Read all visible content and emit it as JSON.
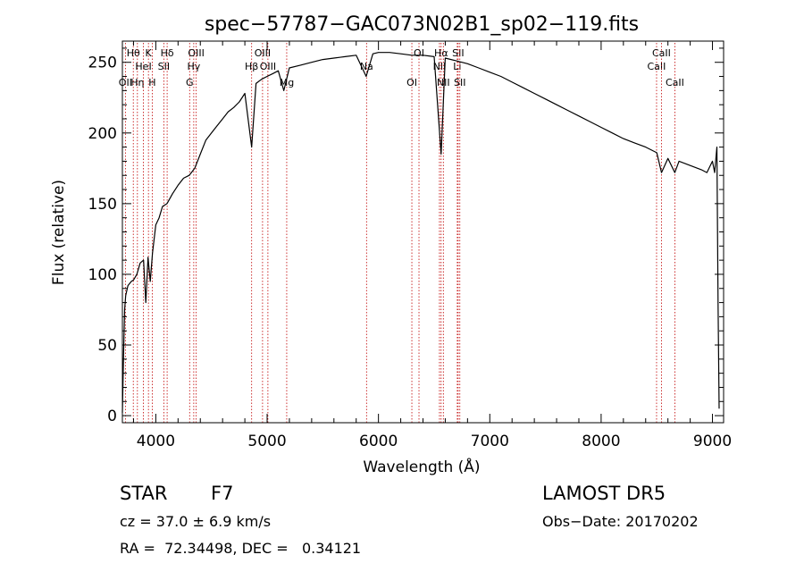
{
  "chart_data": {
    "type": "line",
    "title": "spec−57787−GAC073N02B1_sp02−119.fits",
    "xlabel": "Wavelength (Å)",
    "ylabel": "Flux (relative)",
    "xlim": [
      3700,
      9100
    ],
    "ylim": [
      -5,
      265
    ],
    "xticks": [
      4000,
      5000,
      6000,
      7000,
      8000,
      9000
    ],
    "yticks": [
      0,
      50,
      100,
      150,
      200,
      250
    ],
    "xtick_labels": [
      "4000",
      "5000",
      "6000",
      "7000",
      "8000",
      "9000"
    ],
    "ytick_labels": [
      "0",
      "50",
      "100",
      "150",
      "200",
      "250"
    ],
    "grid": false,
    "series": [
      {
        "x": [
          3700,
          3710,
          3720,
          3730,
          3750,
          3780,
          3800,
          3830,
          3860,
          3890,
          3910,
          3930,
          3950,
          3970,
          4000,
          4030,
          4060,
          4100,
          4150,
          4200,
          4250,
          4300,
          4350,
          4400,
          4450,
          4500,
          4550,
          4600,
          4650,
          4700,
          4750,
          4800,
          4861,
          4900,
          4950,
          5000,
          5050,
          5100,
          5150,
          5200,
          5300,
          5400,
          5500,
          5600,
          5700,
          5800,
          5890,
          5950,
          6000,
          6100,
          6200,
          6300,
          6400,
          6500,
          6563,
          6600,
          6700,
          6800,
          6900,
          7000,
          7100,
          7200,
          7300,
          7400,
          7500,
          7600,
          7700,
          7800,
          7900,
          8000,
          8100,
          8200,
          8300,
          8400,
          8500,
          8542,
          8600,
          8662,
          8700,
          8800,
          8900,
          8950,
          9000,
          9020,
          9040,
          9050,
          9060
        ],
        "y": [
          2,
          40,
          75,
          85,
          92,
          95,
          96,
          100,
          108,
          110,
          80,
          112,
          95,
          115,
          135,
          140,
          148,
          150,
          157,
          163,
          168,
          170,
          175,
          185,
          195,
          200,
          205,
          210,
          215,
          218,
          222,
          228,
          190,
          235,
          238,
          240,
          242,
          244,
          230,
          246,
          248,
          250,
          252,
          253,
          254,
          255,
          240,
          256,
          257,
          257,
          256,
          255,
          255,
          254,
          185,
          253,
          251,
          249,
          246,
          243,
          240,
          236,
          232,
          228,
          224,
          220,
          216,
          212,
          208,
          204,
          200,
          196,
          193,
          190,
          186,
          172,
          182,
          172,
          180,
          177,
          174,
          172,
          180,
          172,
          190,
          80,
          5
        ]
      }
    ],
    "lines": [
      {
        "x": 3727,
        "label": "OII",
        "row": 3
      },
      {
        "x": 3798,
        "label": "Hθ",
        "row": 1
      },
      {
        "x": 3835,
        "label": "Hη",
        "row": 3
      },
      {
        "x": 3889,
        "label": "HeI",
        "row": 2
      },
      {
        "x": 3934,
        "label": "K",
        "row": 1
      },
      {
        "x": 3968,
        "label": "H",
        "row": 3
      },
      {
        "x": 4072,
        "label": "SII",
        "row": 2
      },
      {
        "x": 4102,
        "label": "Hδ",
        "row": 1
      },
      {
        "x": 4304,
        "label": "G",
        "row": 3
      },
      {
        "x": 4341,
        "label": "Hγ",
        "row": 2
      },
      {
        "x": 4363,
        "label": "OIII",
        "row": 1
      },
      {
        "x": 4861,
        "label": "Hβ",
        "row": 2
      },
      {
        "x": 4959,
        "label": "OIII",
        "row": 1
      },
      {
        "x": 5007,
        "label": "OIII",
        "row": 2
      },
      {
        "x": 5176,
        "label": "Mg",
        "row": 3
      },
      {
        "x": 5893,
        "label": "Na",
        "row": 2
      },
      {
        "x": 6300,
        "label": "OI",
        "row": 3
      },
      {
        "x": 6364,
        "label": "OI",
        "row": 1
      },
      {
        "x": 6548,
        "label": "NII",
        "row": 2
      },
      {
        "x": 6563,
        "label": "Hα",
        "row": 1
      },
      {
        "x": 6583,
        "label": "NII",
        "row": 3
      },
      {
        "x": 6708,
        "label": "Li",
        "row": 2
      },
      {
        "x": 6716,
        "label": "SII",
        "row": 1
      },
      {
        "x": 6731,
        "label": "SII",
        "row": 3
      },
      {
        "x": 8498,
        "label": "CaII",
        "row": 2
      },
      {
        "x": 8542,
        "label": "CaII",
        "row": 1
      },
      {
        "x": 8662,
        "label": "CaII",
        "row": 3
      }
    ]
  },
  "info": {
    "object_class": "STAR",
    "subclass": "F7",
    "survey": "LAMOST DR5",
    "cz": "cz = 37.0 ± 6.9 km/s",
    "obs_date": "Obs−Date: 20170202",
    "radec": "RA =  72.34498, DEC =   0.34121"
  }
}
